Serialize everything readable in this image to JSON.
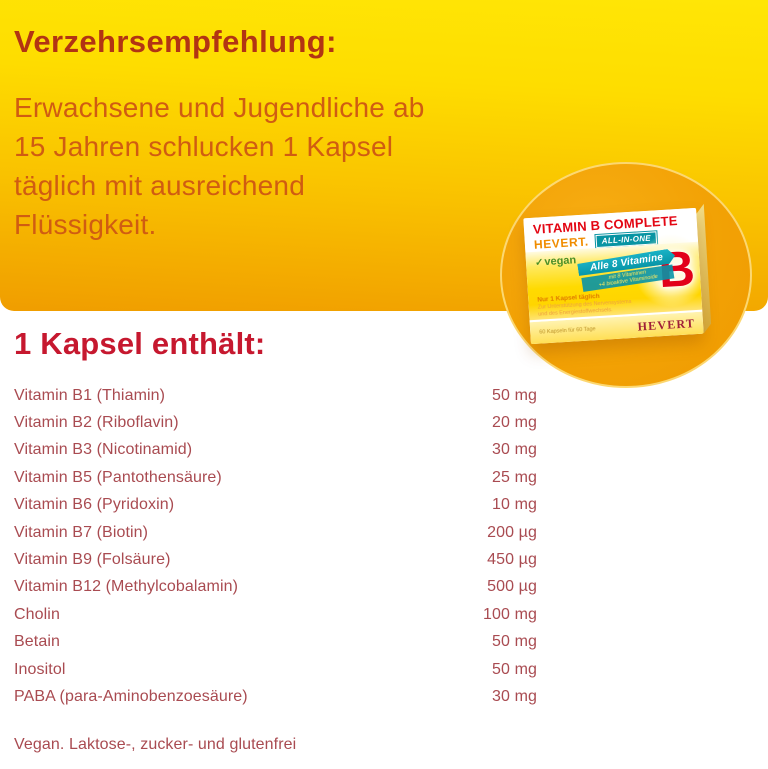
{
  "colors": {
    "band_top": "#ffe606",
    "band_bottom": "#f09d00",
    "circle_orange": "#f2a104",
    "heading1_red": "#b23413",
    "intro_orange_red": "#d05c12",
    "heading2_crimson": "#c6182f",
    "table_brick_red": "#a94b51",
    "box_title_red": "#e30613",
    "box_brand_orange": "#f08c00",
    "badge_teal": "#0894a3",
    "vegan_green": "#4c8f28",
    "big_b_red": "#e2001a",
    "logo_maroon": "#a02038"
  },
  "recommendation": {
    "heading": "Verzehrsempfehlung:",
    "body": "Erwachsene und Jugendliche ab\n15 Jahren schlucken 1 Kapsel\ntäglich mit ausreichend\nFlüssigkeit."
  },
  "product_box": {
    "title": "VITAMIN B COMPLETE",
    "brand": "HEVERT.",
    "badge": "ALL-IN-ONE",
    "vegan_label": "vegan",
    "ribbon_title": "Alle 8 Vitamine",
    "ribbon_subtitle": "mit 8 Vitaminen\n+4 bioaktive Vitaminoide",
    "big_letter": "B",
    "tagline": "Nur 1 Kapsel täglich",
    "description": "Zur Unterstützung des Nervensystems\nund des Energiestoffwechsels.",
    "pack_info": "60 Kapseln für 60 Tage",
    "logo_text": "HEVERT"
  },
  "contents": {
    "heading": "1 Kapsel enthält:",
    "ingredients": [
      {
        "name": "Vitamin B1 (Thiamin)",
        "amount": "50 mg"
      },
      {
        "name": "Vitamin B2 (Riboflavin)",
        "amount": "20 mg"
      },
      {
        "name": "Vitamin B3 (Nicotinamid)",
        "amount": "30 mg"
      },
      {
        "name": "Vitamin B5 (Pantothensäure)",
        "amount": "25 mg"
      },
      {
        "name": "Vitamin B6 (Pyridoxin)",
        "amount": "10 mg"
      },
      {
        "name": "Vitamin B7 (Biotin)",
        "amount": "200 µg"
      },
      {
        "name": "Vitamin B9 (Folsäure)",
        "amount": "450 µg"
      },
      {
        "name": "Vitamin B12 (Methylcobalamin)",
        "amount": "500 µg"
      },
      {
        "name": "Cholin",
        "amount": "100 mg"
      },
      {
        "name": "Betain",
        "amount": "50 mg"
      },
      {
        "name": "Inositol",
        "amount": "50 mg"
      },
      {
        "name": "PABA (para-Aminobenzoesäure)",
        "amount": "30 mg"
      }
    ]
  },
  "footer": {
    "text": "Vegan. Laktose-, zucker- und glutenfrei"
  }
}
